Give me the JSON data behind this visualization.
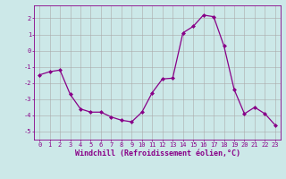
{
  "x": [
    0,
    1,
    2,
    3,
    4,
    5,
    6,
    7,
    8,
    9,
    10,
    11,
    12,
    13,
    14,
    15,
    16,
    17,
    18,
    19,
    20,
    21,
    22,
    23
  ],
  "y": [
    -1.5,
    -1.3,
    -1.2,
    -2.7,
    -3.6,
    -3.8,
    -3.8,
    -4.1,
    -4.3,
    -4.4,
    -3.8,
    -2.6,
    -1.75,
    -1.7,
    1.1,
    1.5,
    2.2,
    2.1,
    0.3,
    -2.4,
    -3.9,
    -3.5,
    -3.9,
    -4.6
  ],
  "line_color": "#880088",
  "marker": "D",
  "marker_size": 2.0,
  "bg_color": "#cce8e8",
  "plot_bg_color": "#cce8e8",
  "grid_color": "#aaaaaa",
  "xlabel": "Windchill (Refroidissement éolien,°C)",
  "xlabel_color": "#880088",
  "tick_color": "#880088",
  "spine_color": "#880088",
  "ylim": [
    -5.5,
    2.8
  ],
  "yticks": [
    -5,
    -4,
    -3,
    -2,
    -1,
    0,
    1,
    2
  ],
  "xlim": [
    -0.5,
    23.5
  ],
  "xticks": [
    0,
    1,
    2,
    3,
    4,
    5,
    6,
    7,
    8,
    9,
    10,
    11,
    12,
    13,
    14,
    15,
    16,
    17,
    18,
    19,
    20,
    21,
    22,
    23
  ],
  "tick_fontsize": 5.0,
  "xlabel_fontsize": 6.0,
  "linewidth": 0.9
}
